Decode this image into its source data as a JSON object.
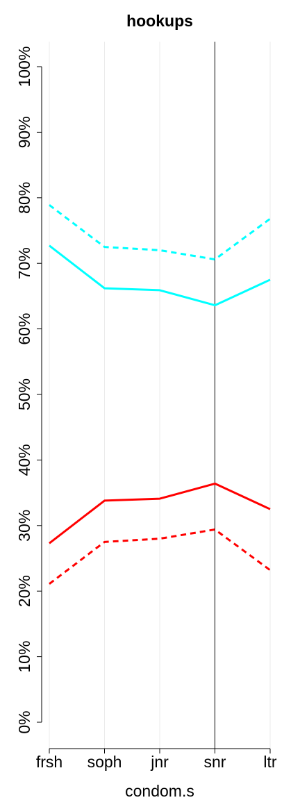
{
  "chart_data": {
    "type": "line",
    "title": "hookups",
    "xlabel": "condom.s",
    "ylabel": "",
    "categories": [
      "frsh",
      "soph",
      "jnr",
      "snr",
      "ltr"
    ],
    "ylim": [
      0,
      100
    ],
    "yticks": [
      0,
      10,
      20,
      30,
      40,
      50,
      60,
      70,
      80,
      90,
      100
    ],
    "ytick_labels": [
      "0%",
      "10%",
      "20%",
      "30%",
      "40%",
      "50%",
      "60%",
      "70%",
      "80%",
      "90%",
      "100%"
    ],
    "grid": "vertical",
    "reference_line_at": "snr",
    "series": [
      {
        "style": "dashed",
        "color": "#00ffff",
        "values": [
          78.9,
          72.5,
          72.0,
          70.6,
          76.8
        ]
      },
      {
        "style": "solid",
        "color": "#00ffff",
        "values": [
          72.7,
          66.2,
          65.9,
          63.6,
          67.5
        ]
      },
      {
        "style": "solid",
        "color": "#ff0000",
        "values": [
          27.3,
          33.8,
          34.1,
          36.4,
          32.5
        ]
      },
      {
        "style": "dashed",
        "color": "#ff0000",
        "values": [
          21.1,
          27.5,
          28.0,
          29.4,
          23.2
        ]
      }
    ]
  }
}
